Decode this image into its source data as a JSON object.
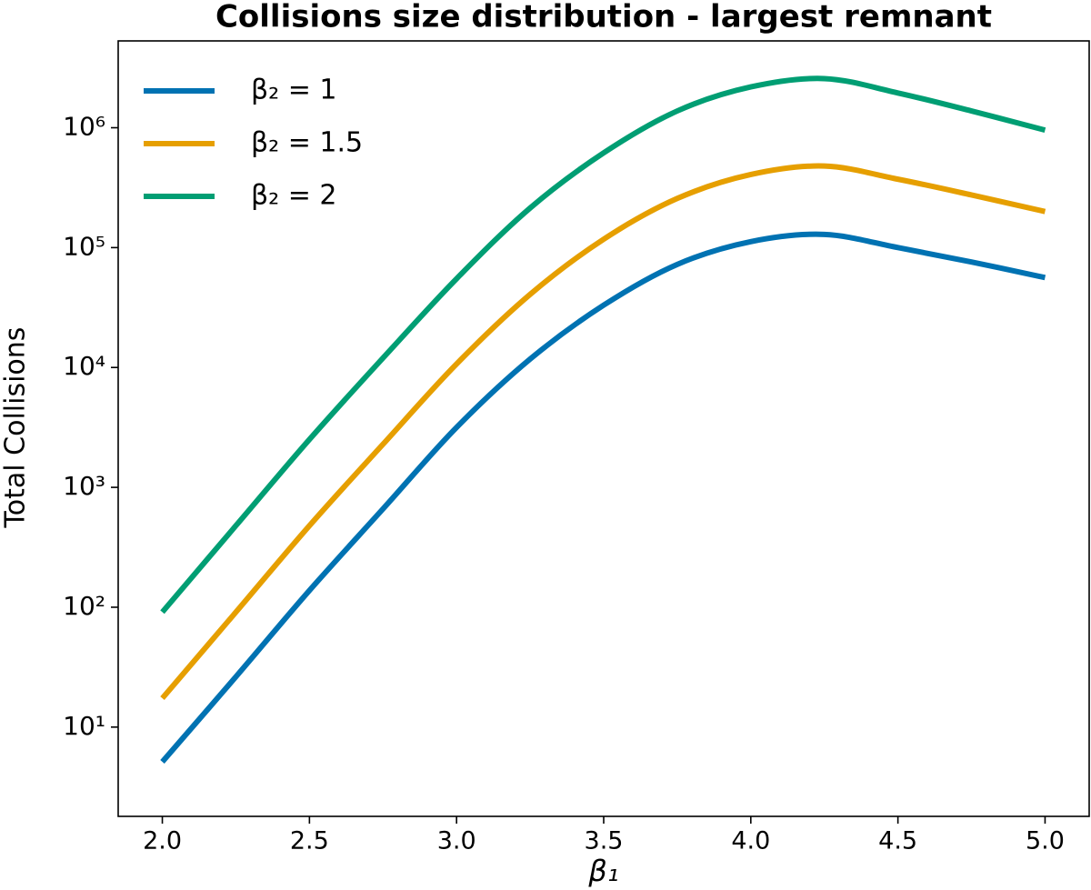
{
  "chart_data": {
    "type": "line",
    "title": "Collisions size distribution - largest remnant",
    "x_label": "β₁",
    "y_label": "Total Collisions",
    "x": [
      2.0,
      2.25,
      2.5,
      2.75,
      3.0,
      3.25,
      3.5,
      3.75,
      4.0,
      4.25,
      4.5,
      4.75,
      5.0
    ],
    "series": [
      {
        "name": "β₂ = 1",
        "color": "#0072b2",
        "values": [
          5.13,
          26.3,
          138,
          661,
          3162,
          11750,
          33110,
          72440,
          112200,
          128800,
          100000,
          75860,
          56230
        ]
      },
      {
        "name": "β₂ = 1.5",
        "color": "#e69f00",
        "values": [
          17.4,
          91,
          479,
          2290,
          10700,
          40700,
          117500,
          257000,
          407000,
          479000,
          372000,
          275000,
          200000
        ]
      },
      {
        "name": "β₂ = 2",
        "color": "#009e73",
        "values": [
          91,
          479,
          2510,
          12000,
          55000,
          214000,
          617000,
          1380000,
          2190000,
          2570000,
          1950000,
          1380000,
          955000
        ]
      }
    ],
    "xlim": [
      1.85,
      5.15
    ],
    "xticks": [
      {
        "value": 2,
        "label": "2.0"
      },
      2.5,
      {
        "value": 3,
        "label": "3.0"
      },
      3.5,
      {
        "value": 4,
        "label": "4.0"
      },
      4.5,
      {
        "value": 5,
        "label": "5.0"
      }
    ],
    "ylim": [
      1.8,
      5300000
    ],
    "y_scale": "log",
    "yticks": [
      {
        "value": 10,
        "label": "10¹"
      },
      {
        "value": 100,
        "label": "10²"
      },
      {
        "value": 1000,
        "label": "10³"
      },
      {
        "value": 10000,
        "label": "10⁴"
      },
      {
        "value": 100000,
        "label": "10⁵"
      },
      {
        "value": 1000000,
        "label": "10⁶"
      }
    ],
    "legend": "upper left",
    "grid": false
  }
}
